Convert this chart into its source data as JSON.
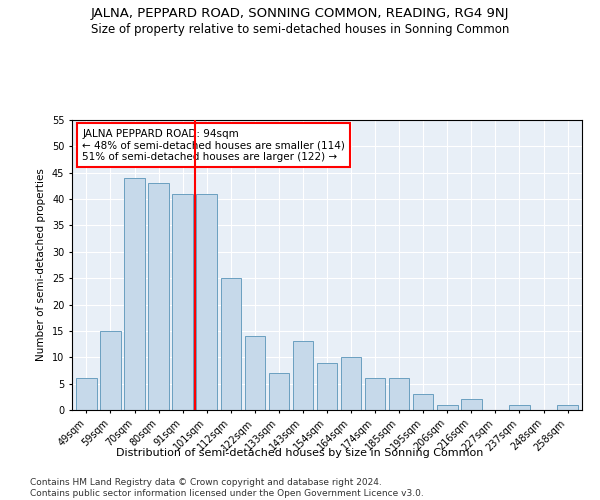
{
  "title": "JALNA, PEPPARD ROAD, SONNING COMMON, READING, RG4 9NJ",
  "subtitle": "Size of property relative to semi-detached houses in Sonning Common",
  "xlabel": "Distribution of semi-detached houses by size in Sonning Common",
  "ylabel": "Number of semi-detached properties",
  "categories": [
    "49sqm",
    "59sqm",
    "70sqm",
    "80sqm",
    "91sqm",
    "101sqm",
    "112sqm",
    "122sqm",
    "133sqm",
    "143sqm",
    "154sqm",
    "164sqm",
    "174sqm",
    "185sqm",
    "195sqm",
    "206sqm",
    "216sqm",
    "227sqm",
    "237sqm",
    "248sqm",
    "258sqm"
  ],
  "values": [
    6,
    15,
    44,
    43,
    41,
    41,
    25,
    14,
    7,
    13,
    9,
    10,
    6,
    6,
    3,
    1,
    2,
    0,
    1,
    0,
    1
  ],
  "bar_color": "#c6d9ea",
  "bar_edge_color": "#6a9fc0",
  "vline_x": 4.5,
  "vline_color": "red",
  "annotation_text": "JALNA PEPPARD ROAD: 94sqm\n← 48% of semi-detached houses are smaller (114)\n51% of semi-detached houses are larger (122) →",
  "annotation_box_color": "white",
  "annotation_box_edge_color": "red",
  "ylim": [
    0,
    55
  ],
  "yticks": [
    0,
    5,
    10,
    15,
    20,
    25,
    30,
    35,
    40,
    45,
    50,
    55
  ],
  "footer": "Contains HM Land Registry data © Crown copyright and database right 2024.\nContains public sector information licensed under the Open Government Licence v3.0.",
  "bg_color": "#e8eff7",
  "fig_bg_color": "#ffffff",
  "title_fontsize": 9.5,
  "subtitle_fontsize": 8.5,
  "xlabel_fontsize": 8,
  "ylabel_fontsize": 7.5,
  "tick_fontsize": 7,
  "footer_fontsize": 6.5,
  "annotation_fontsize": 7.5
}
